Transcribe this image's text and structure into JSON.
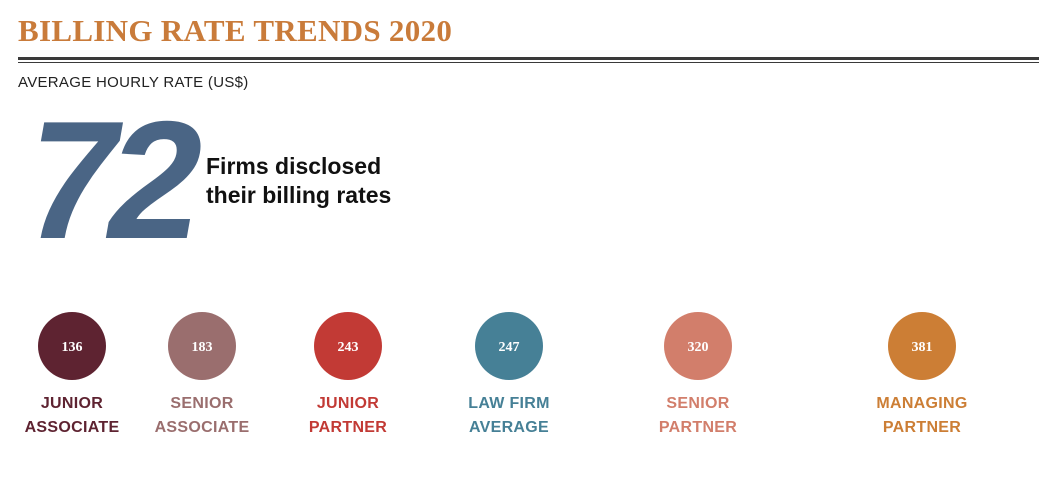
{
  "header": {
    "title": "BILLING RATE TRENDS 2020",
    "subtitle": "AVERAGE HOURLY RATE (US$)"
  },
  "highlight": {
    "value": "72",
    "caption_line1": "Firms disclosed",
    "caption_line2": "their billing rates"
  },
  "colors": {
    "title": "#c97b3a",
    "highlight": "#4a6585",
    "junior_associate": "#5e2331",
    "senior_associate": "#9a6e6e",
    "junior_partner": "#c23a35",
    "law_firm_average": "#468096",
    "senior_partner": "#d27e6b",
    "managing_partner": "#cc7e35"
  },
  "chart_data": {
    "type": "bubble",
    "title": "BILLING RATE TRENDS 2020",
    "subtitle": "AVERAGE HOURLY RATE (US$)",
    "unit": "US$ per hour",
    "series": [
      {
        "label_line1": "JUNIOR",
        "label_line2": "ASSOCIATE",
        "value": 136,
        "color": "#5e2331"
      },
      {
        "label_line1": "SENIOR",
        "label_line2": "ASSOCIATE",
        "value": 183,
        "color": "#9a6e6e"
      },
      {
        "label_line1": "JUNIOR",
        "label_line2": "PARTNER",
        "value": 243,
        "color": "#c23a35"
      },
      {
        "label_line1": "LAW FIRM",
        "label_line2": "AVERAGE",
        "value": 247,
        "color": "#468096"
      },
      {
        "label_line1": "SENIOR",
        "label_line2": "PARTNER",
        "value": 320,
        "color": "#d27e6b"
      },
      {
        "label_line1": "MANAGING",
        "label_line2": "PARTNER",
        "value": 381,
        "color": "#cc7e35"
      }
    ]
  }
}
